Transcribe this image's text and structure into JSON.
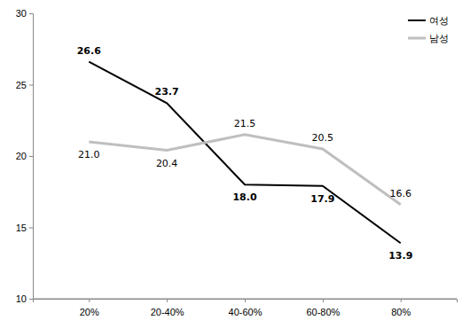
{
  "chart_data": {
    "type": "line",
    "categories": [
      "20%",
      "20-40%",
      "40-60%",
      "60-80%",
      "80%"
    ],
    "series": [
      {
        "name": "여성",
        "color": "#000000",
        "values": [
          26.6,
          23.7,
          18.0,
          17.9,
          13.9
        ],
        "value_labels": [
          "26.6",
          "23.7",
          "18.0",
          "17.9",
          "13.9"
        ]
      },
      {
        "name": "남성",
        "color": "#bfbfbf",
        "values": [
          21.0,
          20.4,
          21.5,
          20.5,
          16.6
        ],
        "value_labels": [
          "21.0",
          "20.4",
          "21.5",
          "20.5",
          "16.6"
        ]
      }
    ],
    "ylim": [
      10,
      30
    ],
    "yticks": [
      10,
      15,
      20,
      25,
      30
    ],
    "grid": false,
    "legend": "top-right",
    "data_labels": true
  }
}
